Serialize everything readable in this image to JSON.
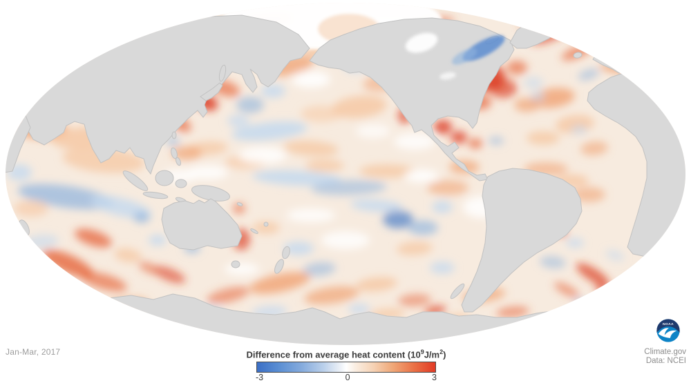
{
  "meta": {
    "date_label": "Jan-Mar, 2017",
    "credit_site": "Climate.gov",
    "credit_data": "Data: NCEI",
    "logo_text": "NOAA"
  },
  "legend": {
    "title_main": "Difference from average heat content ",
    "unit_open": "(10",
    "unit_sup1": "9",
    "unit_mid": "J/m",
    "unit_sup2": "2",
    "unit_close": ")",
    "ticks": [
      "-3",
      "0",
      "3"
    ],
    "gradient_stops": [
      [
        0,
        "#3b6fc6"
      ],
      [
        12,
        "#5a8ed3"
      ],
      [
        25,
        "#85abdd"
      ],
      [
        37,
        "#b9cfea"
      ],
      [
        47,
        "#eef2f8"
      ],
      [
        50,
        "#ffffff"
      ],
      [
        55,
        "#faeee2"
      ],
      [
        65,
        "#f6d3b6"
      ],
      [
        76,
        "#f0a878"
      ],
      [
        88,
        "#ea7146"
      ],
      [
        100,
        "#e23a25"
      ]
    ]
  },
  "map": {
    "type": "filled-anomaly-map",
    "projection": "mollweide-pacific-centered",
    "value_range": [
      -3,
      3
    ],
    "units": "10^9 J/m^2",
    "ocean_base": "#f7ebdf",
    "land_color": "#d9d9d9",
    "land_border": "#c1c1c1",
    "ice_color": "#ffffff",
    "anomaly_palette": {
      "r3": "#dc3a1f",
      "r2": "#e6653c",
      "r1": "#f09e6c",
      "o1": "#f6cba8",
      "w": "#ffffff",
      "b1": "#c4d9ef",
      "b2": "#8fb4de",
      "b3": "#4d7fc8"
    },
    "anomaly_blobs": [
      [
        55,
        185,
        45,
        16,
        8,
        "r1",
        0.8
      ],
      [
        120,
        200,
        45,
        16,
        -4,
        "o1",
        0.9
      ],
      [
        150,
        232,
        60,
        18,
        5,
        "o1",
        0.8
      ],
      [
        28,
        250,
        18,
        12,
        0,
        "b1",
        0.8
      ],
      [
        95,
        285,
        70,
        16,
        8,
        "b2",
        0.7
      ],
      [
        175,
        300,
        45,
        13,
        14,
        "b1",
        0.8
      ],
      [
        45,
        302,
        25,
        12,
        0,
        "o1",
        0.7
      ],
      [
        135,
        345,
        28,
        11,
        18,
        "r2",
        0.75
      ],
      [
        98,
        382,
        40,
        13,
        24,
        "r2",
        0.8
      ],
      [
        150,
        408,
        35,
        11,
        16,
        "r2",
        0.65
      ],
      [
        185,
        370,
        20,
        10,
        10,
        "o1",
        0.8
      ],
      [
        60,
        350,
        25,
        10,
        -5,
        "b1",
        0.6
      ],
      [
        75,
        430,
        45,
        12,
        -12,
        "b2",
        0.55
      ],
      [
        180,
        442,
        35,
        10,
        -8,
        "r1",
        0.6
      ],
      [
        205,
        315,
        12,
        8,
        0,
        "b2",
        0.7
      ],
      [
        228,
        348,
        13,
        8,
        0,
        "b1",
        0.8
      ],
      [
        262,
        128,
        30,
        10,
        28,
        "r1",
        0.9
      ],
      [
        298,
        148,
        18,
        11,
        22,
        "r3",
        0.85
      ],
      [
        326,
        128,
        22,
        11,
        18,
        "r2",
        0.65
      ],
      [
        262,
        180,
        16,
        9,
        30,
        "r2",
        0.7
      ],
      [
        215,
        190,
        12,
        8,
        10,
        "b2",
        0.55
      ],
      [
        250,
        205,
        10,
        7,
        0,
        "b2",
        0.55
      ],
      [
        362,
        152,
        20,
        12,
        0,
        "b2",
        0.6
      ],
      [
        395,
        132,
        18,
        10,
        0,
        "b1",
        0.8
      ],
      [
        345,
        175,
        16,
        9,
        0,
        "b1",
        0.7
      ],
      [
        420,
        95,
        35,
        14,
        -12,
        "r1",
        0.7
      ],
      [
        472,
        72,
        30,
        12,
        -8,
        "o1",
        0.9
      ],
      [
        390,
        28,
        35,
        7,
        -4,
        "r2",
        0.65
      ],
      [
        300,
        38,
        22,
        7,
        -8,
        "r1",
        0.6
      ],
      [
        450,
        115,
        28,
        12,
        0,
        "w",
        0.9
      ],
      [
        390,
        190,
        55,
        13,
        -6,
        "b1",
        0.85
      ],
      [
        300,
        215,
        30,
        10,
        -4,
        "o1",
        0.8
      ],
      [
        450,
        215,
        40,
        11,
        4,
        "o1",
        0.85
      ],
      [
        520,
        155,
        40,
        16,
        -6,
        "o1",
        0.9
      ],
      [
        560,
        118,
        35,
        14,
        -10,
        "r1",
        0.5
      ],
      [
        515,
        95,
        18,
        10,
        0,
        "b1",
        0.75
      ],
      [
        585,
        168,
        9,
        12,
        -12,
        "r3",
        0.65
      ],
      [
        610,
        150,
        22,
        10,
        0,
        "o1",
        0.8
      ],
      [
        430,
        258,
        65,
        11,
        3,
        "b1",
        0.85
      ],
      [
        505,
        272,
        55,
        11,
        -2,
        "b2",
        0.55
      ],
      [
        545,
        298,
        38,
        9,
        4,
        "b1",
        0.8
      ],
      [
        576,
        318,
        22,
        13,
        0,
        "b3",
        0.7
      ],
      [
        612,
        330,
        22,
        11,
        0,
        "b2",
        0.65
      ],
      [
        640,
        300,
        15,
        9,
        0,
        "b1",
        0.8
      ],
      [
        470,
        240,
        28,
        9,
        0,
        "o1",
        0.8
      ],
      [
        560,
        248,
        40,
        10,
        0,
        "o1",
        0.85
      ],
      [
        610,
        255,
        25,
        9,
        0,
        "w",
        0.9
      ],
      [
        648,
        272,
        30,
        11,
        0,
        "r1",
        0.55
      ],
      [
        672,
        242,
        22,
        10,
        0,
        "r1",
        0.65
      ],
      [
        270,
        222,
        22,
        10,
        0,
        "r1",
        0.65
      ],
      [
        300,
        250,
        30,
        10,
        0,
        "w",
        0.85
      ],
      [
        355,
        235,
        30,
        10,
        0,
        "o1",
        0.7
      ],
      [
        278,
        360,
        12,
        7,
        0,
        "b2",
        0.65
      ],
      [
        350,
        347,
        12,
        16,
        8,
        "r3",
        0.65
      ],
      [
        346,
        302,
        9,
        8,
        0,
        "r2",
        0.6
      ],
      [
        385,
        330,
        20,
        9,
        0,
        "o1",
        0.8
      ],
      [
        432,
        360,
        22,
        10,
        0,
        "b1",
        0.8
      ],
      [
        462,
        390,
        24,
        10,
        -6,
        "b2",
        0.55
      ],
      [
        405,
        410,
        45,
        13,
        -12,
        "r1",
        0.75
      ],
      [
        480,
        428,
        40,
        12,
        -8,
        "r1",
        0.65
      ],
      [
        330,
        428,
        32,
        10,
        -14,
        "r2",
        0.55
      ],
      [
        245,
        398,
        25,
        9,
        22,
        "r3",
        0.6
      ],
      [
        215,
        388,
        16,
        7,
        26,
        "r2",
        0.55
      ],
      [
        300,
        452,
        22,
        8,
        -6,
        "b1",
        0.7
      ],
      [
        390,
        452,
        26,
        9,
        -4,
        "b1",
        0.7
      ],
      [
        545,
        412,
        30,
        10,
        -6,
        "o1",
        0.9
      ],
      [
        600,
        360,
        26,
        10,
        -4,
        "o1",
        0.8
      ],
      [
        640,
        388,
        18,
        9,
        0,
        "b1",
        0.75
      ],
      [
        600,
        435,
        24,
        9,
        -4,
        "r2",
        0.5
      ],
      [
        630,
        450,
        16,
        7,
        -10,
        "r3",
        0.65
      ],
      [
        560,
        455,
        26,
        8,
        -4,
        "o1",
        0.8
      ],
      [
        520,
        448,
        16,
        8,
        0,
        "b1",
        0.7
      ],
      [
        641,
        184,
        13,
        10,
        0,
        "r3",
        0.8
      ],
      [
        664,
        199,
        12,
        9,
        0,
        "r3",
        0.75
      ],
      [
        688,
        208,
        10,
        7,
        0,
        "r2",
        0.75
      ],
      [
        718,
        204,
        11,
        6,
        0,
        "b2",
        0.55
      ],
      [
        705,
        112,
        26,
        20,
        0,
        "r3",
        0.85
      ],
      [
        728,
        128,
        20,
        14,
        0,
        "r3",
        0.65
      ],
      [
        695,
        148,
        16,
        11,
        0,
        "r2",
        0.7
      ],
      [
        748,
        98,
        15,
        10,
        0,
        "r2",
        0.65
      ],
      [
        762,
        152,
        18,
        10,
        0,
        "r1",
        0.65
      ],
      [
        772,
        120,
        14,
        9,
        0,
        "b1",
        0.55
      ],
      [
        652,
        68,
        38,
        12,
        -24,
        "b3",
        0.7
      ],
      [
        628,
        52,
        24,
        10,
        -24,
        "b2",
        0.55
      ],
      [
        700,
        72,
        18,
        8,
        -22,
        "r1",
        0.7
      ],
      [
        628,
        32,
        30,
        7,
        -6,
        "r2",
        0.55
      ],
      [
        795,
        52,
        28,
        8,
        -20,
        "r3",
        0.65
      ],
      [
        835,
        76,
        24,
        8,
        -22,
        "r2",
        0.65
      ],
      [
        770,
        32,
        20,
        6,
        -14,
        "r2",
        0.55
      ],
      [
        852,
        108,
        16,
        7,
        -18,
        "b2",
        0.55
      ],
      [
        872,
        42,
        14,
        6,
        -16,
        "r1",
        0.55
      ],
      [
        800,
        142,
        32,
        14,
        -8,
        "r1",
        0.75
      ],
      [
        832,
        180,
        28,
        13,
        -6,
        "o1",
        0.9
      ],
      [
        786,
        200,
        24,
        10,
        0,
        "o1",
        0.85
      ],
      [
        778,
        140,
        10,
        7,
        0,
        "b1",
        0.65
      ],
      [
        860,
        215,
        20,
        10,
        -6,
        "r1",
        0.55
      ],
      [
        838,
        188,
        12,
        7,
        0,
        "b1",
        0.6
      ],
      [
        905,
        100,
        38,
        7,
        6,
        "r1",
        0.8
      ],
      [
        790,
        245,
        32,
        10,
        0,
        "r1",
        0.55
      ],
      [
        828,
        262,
        24,
        9,
        0,
        "o1",
        0.9
      ],
      [
        800,
        320,
        13,
        8,
        28,
        "r3",
        0.7
      ],
      [
        812,
        336,
        10,
        7,
        30,
        "r2",
        0.65
      ],
      [
        852,
        282,
        24,
        11,
        0,
        "r1",
        0.55
      ],
      [
        766,
        350,
        15,
        9,
        0,
        "b2",
        0.55
      ],
      [
        800,
        380,
        19,
        9,
        6,
        "b2",
        0.5
      ],
      [
        832,
        352,
        13,
        7,
        0,
        "b1",
        0.7
      ],
      [
        858,
        398,
        28,
        9,
        32,
        "r3",
        0.7
      ],
      [
        878,
        424,
        20,
        7,
        34,
        "r3",
        0.55
      ],
      [
        820,
        420,
        20,
        7,
        28,
        "r2",
        0.55
      ],
      [
        845,
        442,
        16,
        6,
        30,
        "b2",
        0.5
      ],
      [
        890,
        370,
        14,
        7,
        20,
        "b1",
        0.55
      ],
      [
        700,
        428,
        32,
        10,
        -8,
        "r1",
        0.65
      ],
      [
        742,
        452,
        24,
        8,
        -6,
        "r2",
        0.55
      ],
      [
        660,
        462,
        20,
        7,
        -8,
        "o1",
        0.8
      ],
      [
        380,
        225,
        35,
        12,
        0,
        "w",
        0.85
      ],
      [
        600,
        205,
        30,
        12,
        0,
        "w",
        0.8
      ],
      [
        700,
        300,
        30,
        16,
        0,
        "w",
        0.85
      ],
      [
        500,
        348,
        35,
        13,
        0,
        "w",
        0.8
      ],
      [
        260,
        255,
        25,
        10,
        0,
        "w",
        0.8
      ],
      [
        450,
        312,
        35,
        10,
        0,
        "w",
        0.8
      ],
      [
        350,
        390,
        25,
        9,
        0,
        "w",
        0.8
      ],
      [
        730,
        330,
        22,
        12,
        0,
        "w",
        0.8
      ],
      [
        540,
        190,
        25,
        10,
        0,
        "w",
        0.7
      ],
      [
        465,
        165,
        30,
        12,
        0,
        "o1",
        0.6
      ]
    ]
  },
  "logo_colors": {
    "dark_navy": "#1f3a6d",
    "bright_blue": "#0d83c6",
    "white": "#ffffff"
  }
}
